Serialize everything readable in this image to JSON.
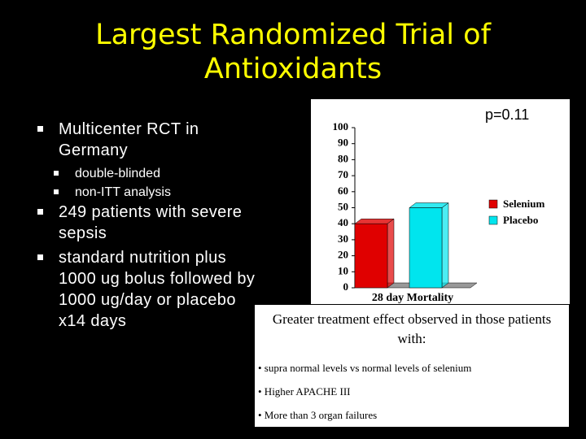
{
  "title": "Largest Randomized Trial of Antioxidants",
  "bullets": [
    {
      "text": "Multicenter RCT in Germany",
      "sub": [
        "double-blinded",
        "non-ITT analysis"
      ]
    },
    {
      "text": "249 patients with severe sepsis"
    },
    {
      "text": "standard nutrition plus 1000 ug bolus followed by 1000 ug/day or placebo x14 days"
    }
  ],
  "chart_data": {
    "type": "bar",
    "annotation": "p=0.11",
    "categories": [
      "28 day Mortality"
    ],
    "series": [
      {
        "name": "Selenium",
        "color": "#e00000",
        "values": [
          40
        ]
      },
      {
        "name": "Placebo",
        "color": "#00e5ee",
        "values": [
          50
        ]
      }
    ],
    "ylim": [
      0,
      100
    ],
    "yticks": [
      0,
      10,
      20,
      30,
      40,
      50,
      60,
      70,
      80,
      90,
      100
    ],
    "legend": "right"
  },
  "box": {
    "heading": "Greater treatment effect observed in those patients with:",
    "items": [
      "• supra normal levels vs normal levels  of selenium",
      "• Higher APACHE III",
      "• More than 3 organ failures"
    ]
  }
}
